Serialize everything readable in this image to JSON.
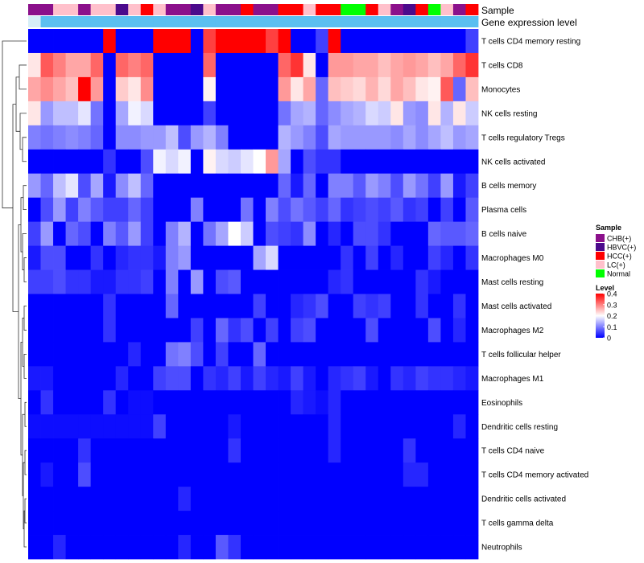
{
  "chart_data": {
    "type": "heatmap",
    "title": "",
    "columns": 36,
    "annotation_tracks": [
      {
        "name": "Sample",
        "label": "Sample"
      },
      {
        "name": "Gene expression level",
        "label": "Gene expression level"
      }
    ],
    "sample_groups": [
      "CHB(+)",
      "CHB(+)",
      "LC(+)",
      "LC(+)",
      "CHB(+)",
      "LC(+)",
      "LC(+)",
      "HBVC(+)",
      "LC(+)",
      "HCC(+)",
      "LC(+)",
      "CHB(+)",
      "CHB(+)",
      "HBVC(+)",
      "LC(+)",
      "CHB(+)",
      "CHB(+)",
      "HCC(+)",
      "CHB(+)",
      "CHB(+)",
      "HCC(+)",
      "HCC(+)",
      "LC(+)",
      "HCC(+)",
      "HCC(+)",
      "Normal",
      "Normal",
      "HCC(+)",
      "LC(+)",
      "CHB(+)",
      "HBVC(+)",
      "HCC(+)",
      "Normal",
      "LC(+)",
      "CHB(+)",
      "HCC(+)"
    ],
    "sample_colors": {
      "CHB(+)": "#8B108B",
      "HBVC(+)": "#4B0A8C",
      "HCC(+)": "#FF0000",
      "LC(+)": "#FFC0CB",
      "Normal": "#00FF00"
    },
    "expression_track_color": "#5BBFF0",
    "expression_track_first_color": "#D6EEF7",
    "rows": [
      "T cells CD4 memory resting",
      "T cells CD8",
      "Monocytes",
      "NK cells resting",
      "T cells regulatory  Tregs",
      "NK cells activated",
      "B cells memory",
      "Plasma cells",
      "B cells naive",
      "Macrophages M0",
      "Mast cells resting",
      "Mast cells activated",
      "Macrophages M2",
      "T cells follicular helper",
      "Macrophages M1",
      "Eosinophils",
      "Dendritic cells resting",
      "T cells CD4 naive",
      "T cells CD4 memory activated",
      "Dendritic cells activated",
      "T cells gamma delta",
      "Neutrophils"
    ],
    "values": [
      [
        0.0,
        0.0,
        0.0,
        0.0,
        0.0,
        0.0,
        0.4,
        0.0,
        0.0,
        0.0,
        0.4,
        0.4,
        0.4,
        0.0,
        0.35,
        0.4,
        0.4,
        0.4,
        0.4,
        0.35,
        0.4,
        0.0,
        0.0,
        0.05,
        0.4,
        0.0,
        0.0,
        0.0,
        0.0,
        0.0,
        0.0,
        0.0,
        0.0,
        0.0,
        0.0,
        0.05
      ],
      [
        0.22,
        0.33,
        0.3,
        0.27,
        0.27,
        0.32,
        0.0,
        0.32,
        0.3,
        0.32,
        0.0,
        0.0,
        0.0,
        0.0,
        0.32,
        0.0,
        0.0,
        0.0,
        0.0,
        0.0,
        0.32,
        0.36,
        0.22,
        0.0,
        0.28,
        0.28,
        0.27,
        0.27,
        0.25,
        0.27,
        0.28,
        0.27,
        0.25,
        0.27,
        0.32,
        0.36
      ],
      [
        0.27,
        0.29,
        0.27,
        0.25,
        0.4,
        0.28,
        0.0,
        0.24,
        0.22,
        0.29,
        0.0,
        0.0,
        0.0,
        0.0,
        0.21,
        0.0,
        0.0,
        0.0,
        0.0,
        0.0,
        0.28,
        0.22,
        0.27,
        0.08,
        0.25,
        0.24,
        0.23,
        0.26,
        0.23,
        0.27,
        0.25,
        0.22,
        0.21,
        0.33,
        0.08,
        0.25
      ],
      [
        0.22,
        0.12,
        0.15,
        0.15,
        0.18,
        0.09,
        0.0,
        0.13,
        0.19,
        0.17,
        0.0,
        0.0,
        0.0,
        0.0,
        0.05,
        0.0,
        0.0,
        0.0,
        0.0,
        0.0,
        0.09,
        0.13,
        0.14,
        0.08,
        0.11,
        0.13,
        0.14,
        0.17,
        0.16,
        0.22,
        0.12,
        0.11,
        0.22,
        0.14,
        0.22,
        0.16
      ],
      [
        0.1,
        0.09,
        0.1,
        0.11,
        0.1,
        0.08,
        0.0,
        0.11,
        0.11,
        0.12,
        0.12,
        0.15,
        0.06,
        0.12,
        0.14,
        0.1,
        0.0,
        0.0,
        0.0,
        0.0,
        0.14,
        0.12,
        0.1,
        0.06,
        0.13,
        0.12,
        0.12,
        0.12,
        0.12,
        0.11,
        0.13,
        0.11,
        0.13,
        0.15,
        0.12,
        0.13
      ],
      [
        0.0,
        0.0,
        0.0,
        0.0,
        0.0,
        0.0,
        0.04,
        0.0,
        0.0,
        0.06,
        0.19,
        0.17,
        0.19,
        0.0,
        0.21,
        0.17,
        0.16,
        0.18,
        0.2,
        0.28,
        0.13,
        0.0,
        0.06,
        0.04,
        0.04,
        0.0,
        0.0,
        0.0,
        0.0,
        0.0,
        0.0,
        0.0,
        0.0,
        0.0,
        0.0,
        0.0
      ],
      [
        0.12,
        0.08,
        0.15,
        0.18,
        0.06,
        0.13,
        0.02,
        0.11,
        0.15,
        0.08,
        0.0,
        0.0,
        0.0,
        0.0,
        0.0,
        0.0,
        0.0,
        0.0,
        0.0,
        0.0,
        0.08,
        0.02,
        0.08,
        0.0,
        0.1,
        0.1,
        0.07,
        0.12,
        0.1,
        0.06,
        0.12,
        0.09,
        0.05,
        0.12,
        0.02,
        0.05
      ],
      [
        0.0,
        0.06,
        0.12,
        0.05,
        0.1,
        0.07,
        0.05,
        0.05,
        0.08,
        0.05,
        0.0,
        0.0,
        0.0,
        0.1,
        0.0,
        0.0,
        0.0,
        0.09,
        0.0,
        0.1,
        0.06,
        0.09,
        0.07,
        0.05,
        0.08,
        0.04,
        0.05,
        0.06,
        0.05,
        0.07,
        0.04,
        0.05,
        0.0,
        0.05,
        0.0,
        0.07
      ],
      [
        0.05,
        0.12,
        0.0,
        0.08,
        0.06,
        0.0,
        0.1,
        0.07,
        0.12,
        0.05,
        0.0,
        0.1,
        0.14,
        0.0,
        0.09,
        0.13,
        0.2,
        0.16,
        0.0,
        0.06,
        0.05,
        0.04,
        0.11,
        0.0,
        0.03,
        0.0,
        0.06,
        0.06,
        0.04,
        0.0,
        0.0,
        0.0,
        0.08,
        0.07,
        0.07,
        0.08
      ],
      [
        0.02,
        0.06,
        0.06,
        0.0,
        0.0,
        0.04,
        0.0,
        0.03,
        0.04,
        0.04,
        0.02,
        0.1,
        0.12,
        0.0,
        0.0,
        0.0,
        0.0,
        0.0,
        0.13,
        0.17,
        0.0,
        0.0,
        0.0,
        0.0,
        0.0,
        0.04,
        0.0,
        0.05,
        0.0,
        0.03,
        0.0,
        0.0,
        0.05,
        0.03,
        0.0,
        0.04
      ],
      [
        0.05,
        0.05,
        0.06,
        0.04,
        0.04,
        0.02,
        0.02,
        0.04,
        0.04,
        0.05,
        0.0,
        0.1,
        0.0,
        0.12,
        0.0,
        0.06,
        0.07,
        0.0,
        0.0,
        0.0,
        0.0,
        0.0,
        0.0,
        0.0,
        0.03,
        0.04,
        0.0,
        0.0,
        0.0,
        0.0,
        0.0,
        0.04,
        0.02,
        0.0,
        0.0,
        0.0
      ],
      [
        0.0,
        0.0,
        0.0,
        0.0,
        0.0,
        0.0,
        0.04,
        0.0,
        0.0,
        0.0,
        0.0,
        0.08,
        0.0,
        0.0,
        0.0,
        0.0,
        0.0,
        0.0,
        0.05,
        0.0,
        0.0,
        0.03,
        0.04,
        0.06,
        0.0,
        0.0,
        0.05,
        0.04,
        0.05,
        0.0,
        0.0,
        0.04,
        0.0,
        0.0,
        0.04,
        0.0
      ],
      [
        0.0,
        0.0,
        0.0,
        0.0,
        0.0,
        0.0,
        0.04,
        0.0,
        0.0,
        0.0,
        0.0,
        0.0,
        0.0,
        0.05,
        0.0,
        0.08,
        0.04,
        0.06,
        0.0,
        0.05,
        0.0,
        0.05,
        0.06,
        0.0,
        0.0,
        0.0,
        0.0,
        0.06,
        0.0,
        0.0,
        0.0,
        0.0,
        0.06,
        0.0,
        0.03,
        0.0
      ],
      [
        0.0,
        0.0,
        0.0,
        0.0,
        0.0,
        0.0,
        0.0,
        0.0,
        0.03,
        0.0,
        0.0,
        0.09,
        0.1,
        0.06,
        0.0,
        0.05,
        0.0,
        0.0,
        0.08,
        0.0,
        0.0,
        0.0,
        0.0,
        0.0,
        0.0,
        0.0,
        0.0,
        0.0,
        0.0,
        0.0,
        0.0,
        0.0,
        0.0,
        0.0,
        0.0,
        0.0
      ],
      [
        0.02,
        0.02,
        0.0,
        0.0,
        0.0,
        0.0,
        0.0,
        0.03,
        0.0,
        0.0,
        0.05,
        0.06,
        0.06,
        0.0,
        0.04,
        0.03,
        0.05,
        0.02,
        0.05,
        0.03,
        0.02,
        0.05,
        0.02,
        0.0,
        0.03,
        0.04,
        0.05,
        0.02,
        0.0,
        0.04,
        0.03,
        0.05,
        0.04,
        0.04,
        0.03,
        0.02
      ],
      [
        0.0,
        0.04,
        0.0,
        0.0,
        0.0,
        0.0,
        0.04,
        0.0,
        0.01,
        0.01,
        0.0,
        0.0,
        0.0,
        0.0,
        0.0,
        0.0,
        0.0,
        0.0,
        0.0,
        0.0,
        0.0,
        0.03,
        0.02,
        0.01,
        0.03,
        0.0,
        0.0,
        0.0,
        0.0,
        0.0,
        0.0,
        0.0,
        0.0,
        0.0,
        0.0,
        0.0
      ],
      [
        0.01,
        0.01,
        0.01,
        0.01,
        0.01,
        0.01,
        0.01,
        0.01,
        0.01,
        0.01,
        0.05,
        0.0,
        0.0,
        0.0,
        0.0,
        0.0,
        0.02,
        0.0,
        0.0,
        0.0,
        0.0,
        0.0,
        0.0,
        0.0,
        0.03,
        0.0,
        0.0,
        0.0,
        0.0,
        0.0,
        0.0,
        0.0,
        0.0,
        0.0,
        0.03,
        0.0
      ],
      [
        0.0,
        0.0,
        0.0,
        0.0,
        0.04,
        0.0,
        0.0,
        0.0,
        0.0,
        0.0,
        0.0,
        0.0,
        0.0,
        0.0,
        0.0,
        0.0,
        0.04,
        0.0,
        0.0,
        0.0,
        0.0,
        0.0,
        0.0,
        0.0,
        0.03,
        0.0,
        0.0,
        0.0,
        0.0,
        0.0,
        0.04,
        0.0,
        0.0,
        0.0,
        0.0,
        0.0
      ],
      [
        0.0,
        0.02,
        0.0,
        0.0,
        0.06,
        0.0,
        0.0,
        0.0,
        0.0,
        0.0,
        0.0,
        0.0,
        0.0,
        0.0,
        0.0,
        0.0,
        0.0,
        0.0,
        0.0,
        0.0,
        0.0,
        0.0,
        0.0,
        0.0,
        0.0,
        0.0,
        0.0,
        0.0,
        0.0,
        0.0,
        0.03,
        0.03,
        0.0,
        0.0,
        0.0,
        0.0
      ],
      [
        0.0,
        0.0,
        0.0,
        0.0,
        0.0,
        0.0,
        0.0,
        0.0,
        0.0,
        0.0,
        0.0,
        0.0,
        0.03,
        0.0,
        0.0,
        0.0,
        0.0,
        0.0,
        0.0,
        0.0,
        0.0,
        0.0,
        0.0,
        0.0,
        0.0,
        0.0,
        0.0,
        0.0,
        0.0,
        0.0,
        0.0,
        0.0,
        0.0,
        0.0,
        0.0,
        0.0
      ],
      [
        0.0,
        0.0,
        0.0,
        0.0,
        0.0,
        0.0,
        0.0,
        0.0,
        0.0,
        0.0,
        0.0,
        0.0,
        0.0,
        0.0,
        0.0,
        0.0,
        0.0,
        0.0,
        0.0,
        0.0,
        0.0,
        0.0,
        0.0,
        0.0,
        0.0,
        0.0,
        0.0,
        0.0,
        0.0,
        0.0,
        0.0,
        0.0,
        0.0,
        0.0,
        0.0,
        0.0
      ],
      [
        0.0,
        0.0,
        0.03,
        0.0,
        0.0,
        0.0,
        0.0,
        0.0,
        0.0,
        0.0,
        0.0,
        0.0,
        0.03,
        0.0,
        0.0,
        0.07,
        0.04,
        0.0,
        0.0,
        0.0,
        0.0,
        0.0,
        0.0,
        0.0,
        0.0,
        0.0,
        0.0,
        0.0,
        0.0,
        0.0,
        0.0,
        0.0,
        0.0,
        0.0,
        0.0,
        0.0
      ]
    ],
    "legend": {
      "sample_title": "Sample",
      "sample_entries": [
        "CHB(+)",
        "HBVC(+)",
        "HCC(+)",
        "LC(+)",
        "Normal"
      ],
      "level_title": "Level",
      "level_ticks": [
        "0.4",
        "0.3",
        "0.2",
        "0.1",
        "0"
      ],
      "level_range": [
        0,
        0.4
      ],
      "placement": "right"
    },
    "color_scale": {
      "low": "#0000FF",
      "mid": "#FFFFFF",
      "high": "#FF0000",
      "midpoint": 0.2,
      "max": 0.4
    },
    "dendrogram": "rows"
  }
}
